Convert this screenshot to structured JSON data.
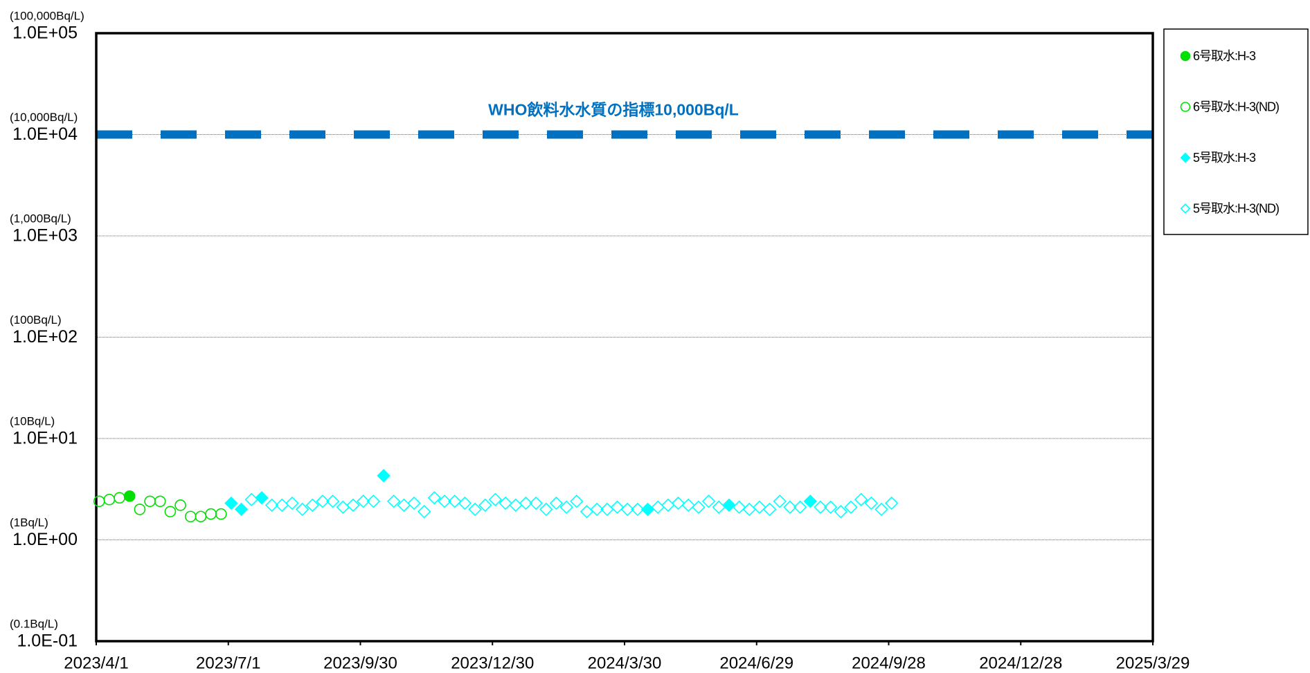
{
  "chart_data": {
    "type": "scatter",
    "log_scale_y": true,
    "grid": true,
    "legend": "right",
    "xlim": [
      "2023/4/1",
      "2025/3/29"
    ],
    "xticks": [
      "2023/4/1",
      "2023/7/1",
      "2023/9/30",
      "2023/12/30",
      "2024/3/30",
      "2024/6/29",
      "2024/9/28",
      "2024/12/28",
      "2025/3/29"
    ],
    "ylim": [
      0.1,
      100000
    ],
    "yticks": [
      {
        "value": 0.1,
        "label": "1.0E-01"
      },
      {
        "value": 1,
        "label": "1.0E+00"
      },
      {
        "value": 10,
        "label": "1.0E+01"
      },
      {
        "value": 100,
        "label": "1.0E+02"
      },
      {
        "value": 1000,
        "label": "1.0E+03"
      },
      {
        "value": 10000,
        "label": "1.0E+04"
      },
      {
        "value": 100000,
        "label": "1.0E+05"
      }
    ],
    "ytick_units": [
      "(0.1Bq/L)",
      "(1Bq/L)",
      "(10Bq/L)",
      "(100Bq/L)",
      "(1,000Bq/L)",
      "(10,000Bq/L)",
      "(100,000Bq/L)"
    ],
    "reference_lines": [
      {
        "value": 10000,
        "label": "WHO飲料水水質の指標10,000Bq/L",
        "color": "#0070c0"
      }
    ],
    "series": [
      {
        "name": "6号取水:H-3",
        "color": "#00e000",
        "marker": "circle",
        "filled": true,
        "x": [
          "2023/4/24"
        ],
        "values": [
          2.7
        ]
      },
      {
        "name": "6号取水:H-3(ND)",
        "color": "#00e000",
        "marker": "circle",
        "filled": false,
        "x": [
          "2023/4/3",
          "2023/4/10",
          "2023/4/17",
          "2023/5/1",
          "2023/5/8",
          "2023/5/15",
          "2023/5/22",
          "2023/5/29",
          "2023/6/5",
          "2023/6/12",
          "2023/6/19",
          "2023/6/26"
        ],
        "values": [
          2.4,
          2.5,
          2.6,
          2.0,
          2.4,
          2.4,
          1.9,
          2.2,
          1.7,
          1.7,
          1.8,
          1.8
        ]
      },
      {
        "name": "5号取水:H-3",
        "color": "#00ffff",
        "marker": "diamond",
        "filled": true,
        "x": [
          "2023/7/3",
          "2023/7/10",
          "2023/7/24",
          "2023/10/16",
          "2024/4/15",
          "2024/6/10",
          "2024/8/5"
        ],
        "values": [
          2.3,
          2.0,
          2.6,
          4.3,
          2.0,
          2.2,
          2.4
        ]
      },
      {
        "name": "5号取水:H-3(ND)",
        "color": "#00ffff",
        "marker": "diamond",
        "filled": false,
        "x": [
          "2023/7/17",
          "2023/7/31",
          "2023/8/7",
          "2023/8/14",
          "2023/8/21",
          "2023/8/28",
          "2023/9/4",
          "2023/9/11",
          "2023/9/18",
          "2023/9/25",
          "2023/10/2",
          "2023/10/9",
          "2023/10/23",
          "2023/10/30",
          "2023/11/6",
          "2023/11/13",
          "2023/11/20",
          "2023/11/27",
          "2023/12/4",
          "2023/12/11",
          "2023/12/18",
          "2023/12/25",
          "2024/1/1",
          "2024/1/8",
          "2024/1/15",
          "2024/1/22",
          "2024/1/29",
          "2024/2/5",
          "2024/2/12",
          "2024/2/19",
          "2024/2/26",
          "2024/3/4",
          "2024/3/11",
          "2024/3/18",
          "2024/3/25",
          "2024/4/1",
          "2024/4/8",
          "2024/4/22",
          "2024/4/29",
          "2024/5/6",
          "2024/5/13",
          "2024/5/20",
          "2024/5/27",
          "2024/6/3",
          "2024/6/17",
          "2024/6/24",
          "2024/7/1",
          "2024/7/8",
          "2024/7/15",
          "2024/7/22",
          "2024/7/29",
          "2024/8/12",
          "2024/8/19",
          "2024/8/26",
          "2024/9/2",
          "2024/9/9",
          "2024/9/16",
          "2024/9/23",
          "2024/9/30"
        ],
        "values": [
          2.5,
          2.2,
          2.2,
          2.3,
          2.0,
          2.2,
          2.4,
          2.4,
          2.1,
          2.2,
          2.4,
          2.4,
          2.4,
          2.2,
          2.3,
          1.9,
          2.6,
          2.4,
          2.4,
          2.3,
          2.0,
          2.2,
          2.5,
          2.3,
          2.2,
          2.3,
          2.3,
          2.0,
          2.3,
          2.1,
          2.4,
          1.9,
          2.0,
          2.0,
          2.1,
          2.0,
          2.0,
          2.1,
          2.2,
          2.3,
          2.2,
          2.1,
          2.4,
          2.1,
          2.1,
          2.0,
          2.1,
          2.0,
          2.4,
          2.1,
          2.1,
          2.1,
          2.1,
          1.9,
          2.1,
          2.5,
          2.3,
          2.0,
          2.3
        ]
      }
    ]
  }
}
